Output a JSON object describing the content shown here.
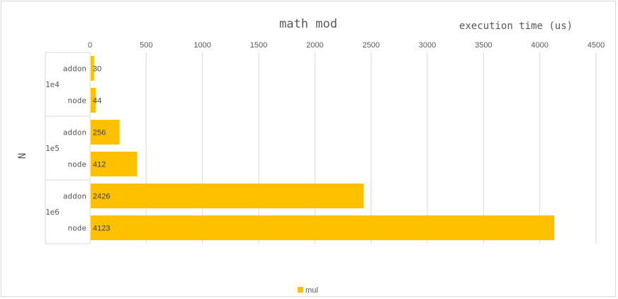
{
  "chart_data": {
    "type": "bar",
    "orientation": "horizontal",
    "title": "math mod",
    "xlabel": "execution time (us)",
    "ylabel": "N",
    "xlim": [
      0,
      4500
    ],
    "x_ticks": [
      0,
      500,
      1000,
      1500,
      2000,
      2500,
      3000,
      3500,
      4000,
      4500
    ],
    "x_axis_position": "top",
    "grid": true,
    "groups": [
      {
        "label": "1e4",
        "categories": [
          "addon",
          "node"
        ]
      },
      {
        "label": "1e5",
        "categories": [
          "addon",
          "node"
        ]
      },
      {
        "label": "1e6",
        "categories": [
          "addon",
          "node"
        ]
      }
    ],
    "series": [
      {
        "name": "mul",
        "color": "#FFC000",
        "values": [
          30,
          44,
          256,
          412,
          2426,
          4123
        ]
      }
    ],
    "data_labels": true,
    "legend_position": "bottom"
  }
}
